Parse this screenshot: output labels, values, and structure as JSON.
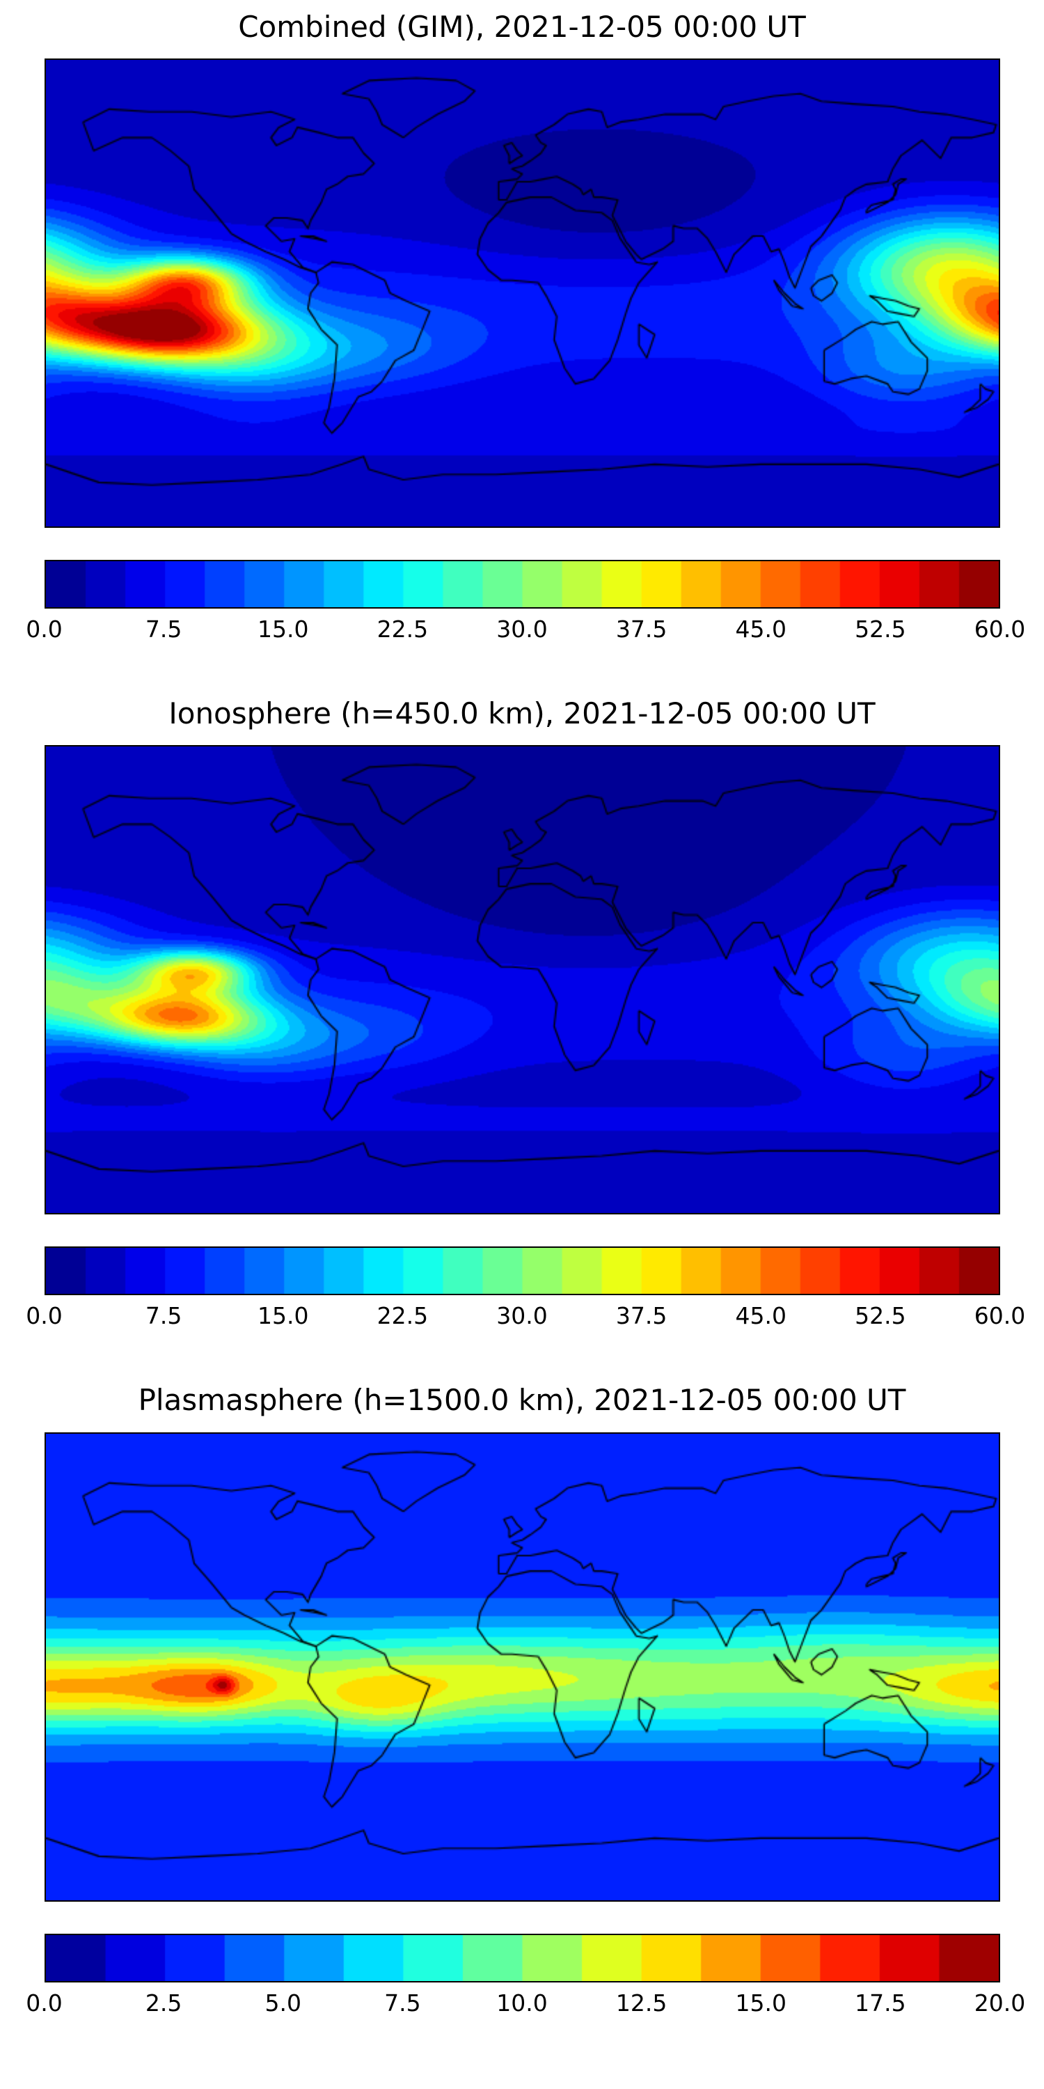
{
  "figure": {
    "background_color": "#ffffff",
    "map_frame_color": "#000000",
    "coastline_color": "#000000"
  },
  "chart_data": [
    {
      "type": "heatmap",
      "title": "Combined (GIM), 2021-12-05 00:00 UT",
      "colormap": "jet",
      "projection": "equirectangular",
      "lon_range": [
        -180,
        180
      ],
      "lat_range": [
        -90,
        90
      ],
      "value_range": [
        0,
        60
      ],
      "level_step": 2.5,
      "colorbar_tick_labels": [
        "0.0",
        "7.5",
        "15.0",
        "22.5",
        "30.0",
        "37.5",
        "45.0",
        "52.5",
        "60.0"
      ],
      "field": {
        "offset": 3,
        "lat_bands": [
          {
            "lat": -8,
            "width": 32,
            "amp": 6
          },
          {
            "lat": -55,
            "width": 10,
            "amp": 3
          }
        ],
        "blobs": [
          {
            "lon": -136,
            "lat": -14,
            "sx": 26,
            "sy": 9,
            "amp": 49
          },
          {
            "lon": -127,
            "lat": 4,
            "sx": 17,
            "sy": 7,
            "amp": 34
          },
          {
            "lon": -103,
            "lat": -26,
            "sx": 24,
            "sy": 11,
            "amp": 11
          },
          {
            "lon": 162,
            "lat": 10,
            "sx": 28,
            "sy": 14,
            "amp": 27
          },
          {
            "lon": 183,
            "lat": -8,
            "sx": 20,
            "sy": 10,
            "amp": 22
          },
          {
            "lon": 145,
            "lat": -30,
            "sx": 24,
            "sy": 11,
            "amp": 8
          },
          {
            "lon": -58,
            "lat": -22,
            "sx": 28,
            "sy": 11,
            "amp": 6
          },
          {
            "lon": 30,
            "lat": 30,
            "sx": 45,
            "sy": 18,
            "amp": -3
          }
        ]
      }
    },
    {
      "type": "heatmap",
      "title": "Ionosphere (h=450.0 km), 2021-12-05 00:00 UT",
      "colormap": "jet",
      "projection": "equirectangular",
      "lon_range": [
        -180,
        180
      ],
      "lat_range": [
        -90,
        90
      ],
      "value_range": [
        0,
        60
      ],
      "level_step": 2.5,
      "colorbar_tick_labels": [
        "0.0",
        "7.5",
        "15.0",
        "22.5",
        "30.0",
        "37.5",
        "45.0",
        "52.5",
        "60.0"
      ],
      "field": {
        "offset": 2.5,
        "lat_bands": [
          {
            "lat": -8,
            "width": 30,
            "amp": 4.5
          },
          {
            "lat": -55,
            "width": 10,
            "amp": 2.5
          }
        ],
        "blobs": [
          {
            "lon": -130,
            "lat": -14,
            "sx": 22,
            "sy": 8,
            "amp": 36
          },
          {
            "lon": -124,
            "lat": 3,
            "sx": 16,
            "sy": 6,
            "amp": 30
          },
          {
            "lon": -100,
            "lat": -25,
            "sx": 22,
            "sy": 10,
            "amp": 8
          },
          {
            "lon": 168,
            "lat": 8,
            "sx": 30,
            "sy": 14,
            "amp": 16
          },
          {
            "lon": 183,
            "lat": -8,
            "sx": 20,
            "sy": 10,
            "amp": 14
          },
          {
            "lon": -60,
            "lat": -22,
            "sx": 28,
            "sy": 11,
            "amp": 5
          },
          {
            "lon": 145,
            "lat": -30,
            "sx": 24,
            "sy": 11,
            "amp": 6
          },
          {
            "lon": 25,
            "lat": 25,
            "sx": 45,
            "sy": 18,
            "amp": -2.5
          }
        ]
      }
    },
    {
      "type": "heatmap",
      "title": "Plasmasphere (h=1500.0 km), 2021-12-05 00:00 UT",
      "colormap": "jet",
      "projection": "equirectangular",
      "lon_range": [
        -180,
        180
      ],
      "lat_range": [
        -90,
        90
      ],
      "value_range": [
        0,
        20
      ],
      "level_step": 1.25,
      "colorbar_tick_labels": [
        "0.0",
        "2.5",
        "5.0",
        "7.5",
        "10.0",
        "12.5",
        "15.0",
        "17.5",
        "20.0"
      ],
      "field": {
        "offset": 2.8,
        "lat_bands": [
          {
            "lat": -5,
            "width": 22,
            "amp": 7.2
          }
        ],
        "blobs": [
          {
            "lon": -120,
            "lat": -8,
            "sx": 20,
            "sy": 8,
            "amp": 5.5
          },
          {
            "lon": -113,
            "lat": -7,
            "sx": 3,
            "sy": 2.5,
            "amp": 4
          },
          {
            "lon": -165,
            "lat": -8,
            "sx": 25,
            "sy": 9,
            "amp": 2.5
          },
          {
            "lon": -55,
            "lat": -14,
            "sx": 18,
            "sy": 8,
            "amp": 3.5
          },
          {
            "lon": -25,
            "lat": -5,
            "sx": 30,
            "sy": 10,
            "amp": 1.5
          },
          {
            "lon": 25,
            "lat": -3,
            "sx": 40,
            "sy": 12,
            "amp": 0.8
          },
          {
            "lon": 120,
            "lat": 8,
            "sx": 30,
            "sy": 10,
            "amp": 1
          },
          {
            "lon": 170,
            "lat": -10,
            "sx": 25,
            "sy": 9,
            "amp": 2
          }
        ]
      }
    }
  ]
}
